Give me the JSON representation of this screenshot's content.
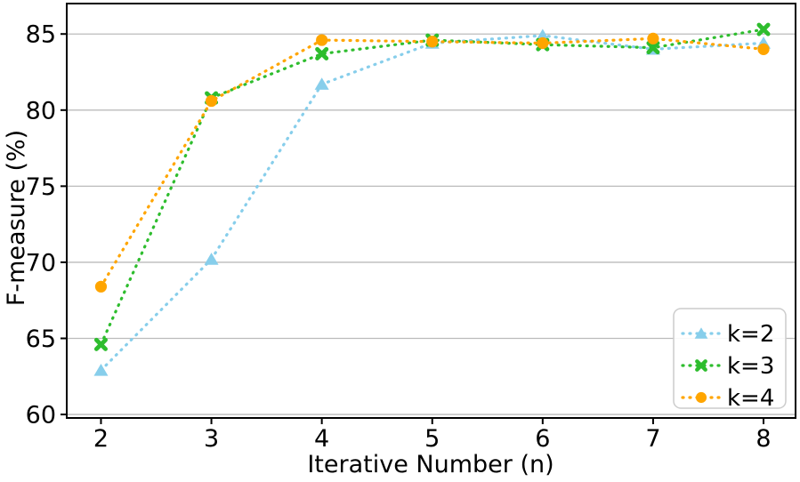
{
  "chart_data": {
    "type": "line",
    "title": "",
    "xlabel": "Iterative Number (n)",
    "ylabel": "F-measure (%)",
    "x": [
      2,
      3,
      4,
      5,
      6,
      7,
      8
    ],
    "series": [
      {
        "name": "k=2",
        "marker": "triangle",
        "color": "#87CEEB",
        "values": [
          62.9,
          70.2,
          81.7,
          84.4,
          84.9,
          84.0,
          84.4
        ]
      },
      {
        "name": "k=3",
        "marker": "x",
        "color": "#2EBD2E",
        "values": [
          64.6,
          80.8,
          83.7,
          84.6,
          84.3,
          84.1,
          85.3
        ]
      },
      {
        "name": "k=4",
        "marker": "circle",
        "color": "#FFA500",
        "values": [
          68.4,
          80.6,
          84.6,
          84.5,
          84.4,
          84.7,
          84.0
        ]
      }
    ],
    "xticks": [
      2,
      3,
      4,
      5,
      6,
      7,
      8
    ],
    "yticks": [
      60,
      65,
      70,
      75,
      80,
      85
    ],
    "xlim": [
      1.69,
      8.29
    ],
    "ylim": [
      59.77,
      87.0
    ],
    "grid": "horizontal",
    "grid_color": "#bbbbbb",
    "spine_color": "#000000",
    "legend_position": "lower right",
    "legend_entries": [
      "k=2",
      "k=3",
      "k=4"
    ],
    "line_style": "dotted"
  }
}
